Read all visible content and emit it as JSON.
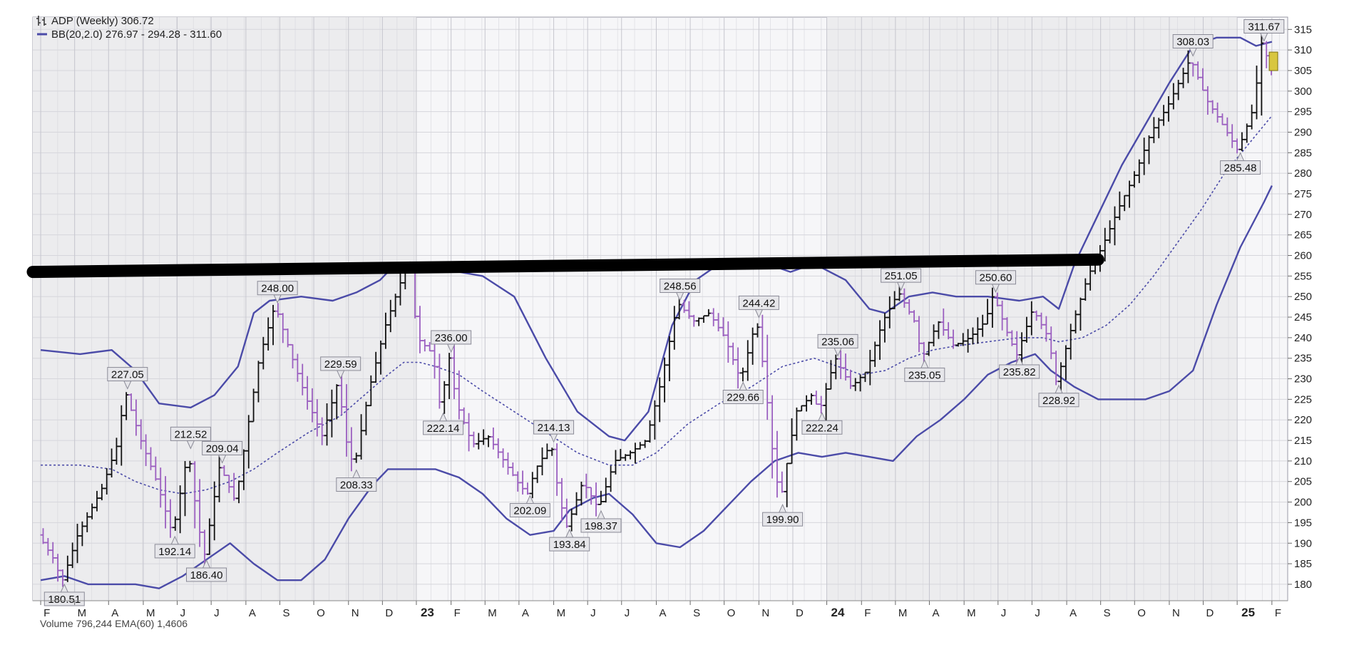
{
  "legend": {
    "symbol_line1": "ADP (Weekly) 306.72",
    "bb_line": "BB(20,2.0) 276.97 - 294.28 - 311.60"
  },
  "footer_fragment": "Volume 796,244  EMA(60) 1,4606",
  "colors": {
    "background": "#ffffff",
    "plot_bg_light": "#f6f6f8",
    "plot_bg_shade": "#ececee",
    "grid": "#d6d6dc",
    "up_bar": "#111111",
    "down_bar": "#9b5fc0",
    "bollinger": "#4b4ba8",
    "resistance": "#000000",
    "label_bg": "#e6e6ea",
    "label_border": "#8a8a96",
    "last_price_box": "#d8c640"
  },
  "chart_data": {
    "type": "ohlc",
    "title": "ADP (Weekly) 306.72",
    "ylim": [
      176,
      318
    ],
    "y_ticks": [
      180,
      185,
      190,
      195,
      200,
      205,
      210,
      215,
      220,
      225,
      230,
      235,
      240,
      245,
      250,
      255,
      260,
      265,
      270,
      275,
      280,
      285,
      290,
      295,
      300,
      305,
      310,
      315
    ],
    "x_month_labels": [
      {
        "label": "F",
        "t": 0
      },
      {
        "label": "M",
        "t": 4.3
      },
      {
        "label": "A",
        "t": 8.6
      },
      {
        "label": "M",
        "t": 13
      },
      {
        "label": "J",
        "t": 17.3
      },
      {
        "label": "J",
        "t": 21.6
      },
      {
        "label": "A",
        "t": 26
      },
      {
        "label": "S",
        "t": 30.3
      },
      {
        "label": "O",
        "t": 34.6
      },
      {
        "label": "N",
        "t": 39
      },
      {
        "label": "D",
        "t": 43.3
      },
      {
        "label": "23",
        "t": 47.6
      },
      {
        "label": "F",
        "t": 52
      },
      {
        "label": "M",
        "t": 56.3
      },
      {
        "label": "A",
        "t": 60.6
      },
      {
        "label": "M",
        "t": 65
      },
      {
        "label": "J",
        "t": 69.3
      },
      {
        "label": "J",
        "t": 73.6
      },
      {
        "label": "A",
        "t": 78
      },
      {
        "label": "S",
        "t": 82.3
      },
      {
        "label": "O",
        "t": 86.6
      },
      {
        "label": "N",
        "t": 91
      },
      {
        "label": "D",
        "t": 95.3
      },
      {
        "label": "24",
        "t": 99.6
      },
      {
        "label": "F",
        "t": 104
      },
      {
        "label": "M",
        "t": 108.3
      },
      {
        "label": "A",
        "t": 112.6
      },
      {
        "label": "M",
        "t": 117
      },
      {
        "label": "J",
        "t": 121.3
      },
      {
        "label": "J",
        "t": 125.6
      },
      {
        "label": "A",
        "t": 130
      },
      {
        "label": "S",
        "t": 134.3
      },
      {
        "label": "O",
        "t": 138.6
      },
      {
        "label": "N",
        "t": 143
      },
      {
        "label": "D",
        "t": 147.3
      },
      {
        "label": "25",
        "t": 151.6
      },
      {
        "label": "F",
        "t": 156
      }
    ],
    "x_range": [
      -1,
      158
    ],
    "price_path": [
      [
        0,
        192
      ],
      [
        2,
        186
      ],
      [
        3,
        180.51
      ],
      [
        5,
        192
      ],
      [
        8,
        203
      ],
      [
        10,
        214
      ],
      [
        11,
        227.05
      ],
      [
        13,
        215
      ],
      [
        15,
        205
      ],
      [
        17,
        192.14
      ],
      [
        19,
        212.52
      ],
      [
        20,
        198
      ],
      [
        21,
        186.4
      ],
      [
        23,
        209.04
      ],
      [
        25,
        200
      ],
      [
        26,
        212
      ],
      [
        28,
        235
      ],
      [
        30,
        248
      ],
      [
        32,
        236
      ],
      [
        34,
        225
      ],
      [
        36,
        216
      ],
      [
        38,
        229.59
      ],
      [
        39,
        215
      ],
      [
        40,
        208.33
      ],
      [
        42,
        228
      ],
      [
        44,
        243
      ],
      [
        46,
        254
      ],
      [
        47,
        260
      ],
      [
        48,
        240
      ],
      [
        50,
        236
      ],
      [
        51,
        222.14
      ],
      [
        52,
        236
      ],
      [
        53,
        224
      ],
      [
        55,
        214
      ],
      [
        57,
        216
      ],
      [
        59,
        210
      ],
      [
        61,
        204
      ],
      [
        62,
        202.09
      ],
      [
        63,
        208
      ],
      [
        65,
        214.13
      ],
      [
        66,
        201
      ],
      [
        67,
        193.84
      ],
      [
        69,
        205
      ],
      [
        71,
        198.37
      ],
      [
        73,
        210
      ],
      [
        75,
        212
      ],
      [
        77,
        215
      ],
      [
        79,
        230
      ],
      [
        81,
        248.56
      ],
      [
        83,
        244
      ],
      [
        85,
        246
      ],
      [
        87,
        240
      ],
      [
        89,
        229.66
      ],
      [
        91,
        244.42
      ],
      [
        92,
        231
      ],
      [
        93,
        213
      ],
      [
        94,
        199.9
      ],
      [
        96,
        222
      ],
      [
        98,
        226
      ],
      [
        99,
        222.24
      ],
      [
        101,
        235.06
      ],
      [
        103,
        228
      ],
      [
        105,
        232
      ],
      [
        107,
        244
      ],
      [
        109,
        251.05
      ],
      [
        111,
        244
      ],
      [
        112,
        235.05
      ],
      [
        114,
        244
      ],
      [
        116,
        238
      ],
      [
        118,
        240
      ],
      [
        120,
        244
      ],
      [
        121,
        250.6
      ],
      [
        123,
        240
      ],
      [
        124,
        235.82
      ],
      [
        126,
        247
      ],
      [
        128,
        240
      ],
      [
        129,
        228.92
      ],
      [
        131,
        243
      ],
      [
        133,
        255
      ],
      [
        135,
        263
      ],
      [
        137,
        272
      ],
      [
        139,
        280
      ],
      [
        141,
        290
      ],
      [
        143,
        296
      ],
      [
        145,
        304
      ],
      [
        146,
        308.03
      ],
      [
        148,
        298
      ],
      [
        150,
        292
      ],
      [
        152,
        285.48
      ],
      [
        154,
        296
      ],
      [
        155,
        311.67
      ],
      [
        156,
        306.72
      ]
    ],
    "bb_upper": [
      [
        0,
        237
      ],
      [
        5,
        236
      ],
      [
        9,
        237
      ],
      [
        12,
        232
      ],
      [
        15,
        224
      ],
      [
        19,
        223
      ],
      [
        22,
        226
      ],
      [
        25,
        233
      ],
      [
        27,
        246
      ],
      [
        29,
        249
      ],
      [
        33,
        250
      ],
      [
        37,
        249
      ],
      [
        40,
        251
      ],
      [
        43,
        254
      ],
      [
        45,
        258
      ],
      [
        47,
        257
      ],
      [
        50,
        256
      ],
      [
        53,
        256
      ],
      [
        56,
        255
      ],
      [
        60,
        250
      ],
      [
        64,
        235
      ],
      [
        68,
        222
      ],
      [
        72,
        216
      ],
      [
        74,
        215
      ],
      [
        77,
        222
      ],
      [
        80,
        243
      ],
      [
        83,
        254
      ],
      [
        86,
        258
      ],
      [
        89,
        259
      ],
      [
        92,
        258
      ],
      [
        95,
        256
      ],
      [
        98,
        258
      ],
      [
        102,
        254
      ],
      [
        105,
        247
      ],
      [
        107,
        246
      ],
      [
        110,
        250
      ],
      [
        113,
        251
      ],
      [
        116,
        250
      ],
      [
        120,
        250
      ],
      [
        124,
        249
      ],
      [
        127,
        250
      ],
      [
        129,
        247
      ],
      [
        131,
        258
      ],
      [
        134,
        270
      ],
      [
        137,
        282
      ],
      [
        140,
        292
      ],
      [
        143,
        302
      ],
      [
        146,
        311
      ],
      [
        149,
        313
      ],
      [
        152,
        313
      ],
      [
        154,
        311
      ],
      [
        156,
        312
      ]
    ],
    "bb_middle": [
      [
        0,
        209
      ],
      [
        5,
        209
      ],
      [
        9,
        208
      ],
      [
        12,
        205
      ],
      [
        15,
        203
      ],
      [
        18,
        202
      ],
      [
        21,
        203
      ],
      [
        24,
        205
      ],
      [
        27,
        208
      ],
      [
        30,
        212
      ],
      [
        34,
        217
      ],
      [
        38,
        221
      ],
      [
        41,
        226
      ],
      [
        44,
        231
      ],
      [
        46,
        234
      ],
      [
        48,
        234
      ],
      [
        50,
        233
      ],
      [
        53,
        231
      ],
      [
        56,
        227
      ],
      [
        60,
        222
      ],
      [
        64,
        217
      ],
      [
        68,
        212
      ],
      [
        72,
        209
      ],
      [
        75,
        209
      ],
      [
        78,
        212
      ],
      [
        82,
        219
      ],
      [
        86,
        224
      ],
      [
        90,
        228
      ],
      [
        94,
        233
      ],
      [
        98,
        235
      ],
      [
        101,
        233
      ],
      [
        104,
        231
      ],
      [
        107,
        232
      ],
      [
        110,
        235
      ],
      [
        113,
        237
      ],
      [
        116,
        238
      ],
      [
        120,
        239
      ],
      [
        124,
        240
      ],
      [
        127,
        240
      ],
      [
        129,
        239
      ],
      [
        132,
        240
      ],
      [
        135,
        243
      ],
      [
        138,
        248
      ],
      [
        141,
        255
      ],
      [
        144,
        263
      ],
      [
        147,
        271
      ],
      [
        150,
        280
      ],
      [
        153,
        287
      ],
      [
        156,
        294
      ]
    ],
    "bb_lower": [
      [
        0,
        181
      ],
      [
        3,
        182
      ],
      [
        6,
        180
      ],
      [
        9,
        180
      ],
      [
        12,
        180
      ],
      [
        15,
        179
      ],
      [
        18,
        182
      ],
      [
        21,
        186
      ],
      [
        24,
        190
      ],
      [
        27,
        185
      ],
      [
        30,
        181
      ],
      [
        33,
        181
      ],
      [
        36,
        186
      ],
      [
        39,
        196
      ],
      [
        42,
        204
      ],
      [
        44,
        208
      ],
      [
        47,
        208
      ],
      [
        50,
        208
      ],
      [
        53,
        206
      ],
      [
        56,
        202
      ],
      [
        59,
        196
      ],
      [
        62,
        192
      ],
      [
        65,
        193
      ],
      [
        67,
        198
      ],
      [
        70,
        201
      ],
      [
        72,
        202
      ],
      [
        75,
        197
      ],
      [
        78,
        190
      ],
      [
        81,
        189
      ],
      [
        84,
        193
      ],
      [
        87,
        199
      ],
      [
        90,
        205
      ],
      [
        93,
        210
      ],
      [
        96,
        212
      ],
      [
        99,
        211
      ],
      [
        102,
        212
      ],
      [
        105,
        211
      ],
      [
        108,
        210
      ],
      [
        111,
        216
      ],
      [
        114,
        220
      ],
      [
        117,
        225
      ],
      [
        120,
        231
      ],
      [
        123,
        234
      ],
      [
        126,
        236
      ],
      [
        128,
        232
      ],
      [
        131,
        228
      ],
      [
        134,
        225
      ],
      [
        137,
        225
      ],
      [
        140,
        225
      ],
      [
        143,
        227
      ],
      [
        146,
        232
      ],
      [
        149,
        248
      ],
      [
        152,
        262
      ],
      [
        155,
        273
      ],
      [
        156,
        277
      ]
    ],
    "resistance_line": {
      "x": [
        -1,
        134
      ],
      "y": [
        256,
        259
      ]
    },
    "price_labels": [
      {
        "text": "180.51",
        "t": 3,
        "price": 180.51,
        "side": "below"
      },
      {
        "text": "227.05",
        "t": 11,
        "price": 227.05,
        "side": "above"
      },
      {
        "text": "192.14",
        "t": 17,
        "price": 192.14,
        "side": "below"
      },
      {
        "text": "212.52",
        "t": 19,
        "price": 212.52,
        "side": "above"
      },
      {
        "text": "186.40",
        "t": 21,
        "price": 186.4,
        "side": "below"
      },
      {
        "text": "209.04",
        "t": 23,
        "price": 209.04,
        "side": "above"
      },
      {
        "text": "248.00",
        "t": 30,
        "price": 248,
        "side": "above"
      },
      {
        "text": "229.59",
        "t": 38,
        "price": 229.59,
        "side": "above"
      },
      {
        "text": "208.33",
        "t": 40,
        "price": 208.33,
        "side": "below"
      },
      {
        "text": "236.00",
        "t": 52,
        "price": 236,
        "side": "above"
      },
      {
        "text": "222.14",
        "t": 51,
        "price": 222.14,
        "side": "below"
      },
      {
        "text": "202.09",
        "t": 62,
        "price": 202.09,
        "side": "below"
      },
      {
        "text": "214.13",
        "t": 65,
        "price": 214.13,
        "side": "above"
      },
      {
        "text": "193.84",
        "t": 67,
        "price": 193.84,
        "side": "below"
      },
      {
        "text": "198.37",
        "t": 71,
        "price": 198.37,
        "side": "below"
      },
      {
        "text": "248.56",
        "t": 81,
        "price": 248.56,
        "side": "above"
      },
      {
        "text": "229.66",
        "t": 89,
        "price": 229.66,
        "side": "below"
      },
      {
        "text": "244.42",
        "t": 91,
        "price": 244.42,
        "side": "above"
      },
      {
        "text": "199.90",
        "t": 94,
        "price": 199.9,
        "side": "below"
      },
      {
        "text": "222.24",
        "t": 99,
        "price": 222.24,
        "side": "below"
      },
      {
        "text": "235.06",
        "t": 101,
        "price": 235.06,
        "side": "above"
      },
      {
        "text": "251.05",
        "t": 109,
        "price": 251.05,
        "side": "above"
      },
      {
        "text": "235.05",
        "t": 112,
        "price": 235.05,
        "side": "below"
      },
      {
        "text": "250.60",
        "t": 121,
        "price": 250.6,
        "side": "above"
      },
      {
        "text": "235.82",
        "t": 124,
        "price": 235.82,
        "side": "below"
      },
      {
        "text": "228.92",
        "t": 129,
        "price": 228.92,
        "side": "below"
      },
      {
        "text": "308.03",
        "t": 146,
        "price": 308.03,
        "side": "above"
      },
      {
        "text": "285.48",
        "t": 152,
        "price": 285.48,
        "side": "below"
      },
      {
        "text": "311.67",
        "t": 155,
        "price": 311.67,
        "side": "above"
      }
    ],
    "last_price": 306.72
  }
}
